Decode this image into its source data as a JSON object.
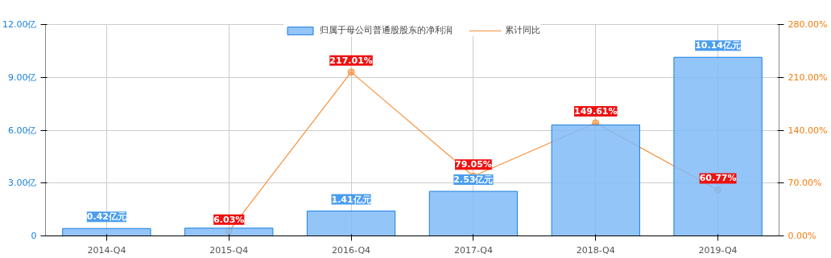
{
  "chart_data": {
    "type": "bar",
    "categories": [
      "2014-Q4",
      "2015-Q4",
      "2016-Q4",
      "2017-Q4",
      "2018-Q4",
      "2019-Q4"
    ],
    "series": [
      {
        "name": "归属于母公司普通股股东的净利润",
        "color": "#80bbf8",
        "values": [
          0.42,
          0.44,
          1.41,
          2.53,
          6.3,
          10.14
        ],
        "value_labels": [
          "0.42亿元",
          null,
          "1.41亿元",
          "2.53亿元",
          null,
          "10.14亿元"
        ]
      },
      {
        "name": "累计同比",
        "type": "line",
        "axis": "y2",
        "color": "#f7913a",
        "values": [
          null,
          6.03,
          217.01,
          79.05,
          149.61,
          60.77
        ],
        "value_labels": [
          null,
          "6.03%",
          "217.01%",
          "79.05%",
          "149.61%",
          "60.77%"
        ]
      }
    ],
    "ylim": [
      0,
      12
    ],
    "yticks": [
      {
        "value": 0,
        "label": "0"
      },
      {
        "value": 3,
        "label": "3.00亿"
      },
      {
        "value": 6,
        "label": "6.00亿"
      },
      {
        "value": 9,
        "label": "9.00亿"
      },
      {
        "value": 12,
        "label": "12.00亿"
      }
    ],
    "y2lim": [
      0,
      280
    ],
    "y2ticks": [
      {
        "value": 0,
        "label": "0.00%"
      },
      {
        "value": 70,
        "label": "70.00%"
      },
      {
        "value": 140,
        "label": "140.00%"
      },
      {
        "value": 210,
        "label": "210.00%"
      },
      {
        "value": 280,
        "label": "280.00%"
      }
    ],
    "grid": true,
    "legend": "top",
    "marker": "circle"
  }
}
